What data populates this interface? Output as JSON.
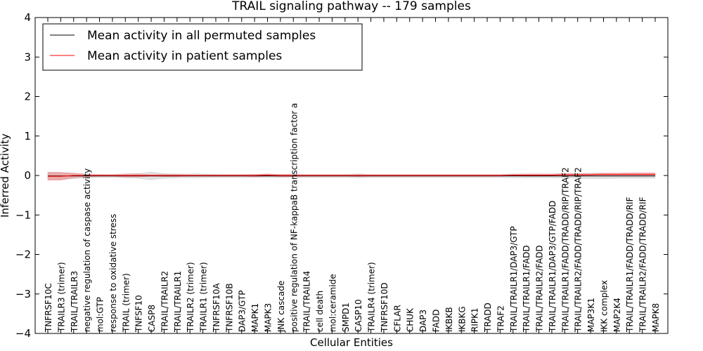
{
  "chart_data": {
    "type": "line",
    "title": "TRAIL signaling pathway -- 179 samples",
    "xlabel": "Cellular Entities",
    "ylabel": "Inferred Activity",
    "ylim": [
      -4,
      4
    ],
    "yticks": [
      "−4",
      "−3",
      "−2",
      "−1",
      "0",
      "1",
      "2",
      "3",
      "4"
    ],
    "grid": false,
    "legend_position": "top-left",
    "categories": [
      "TNFRSF10C",
      "TRAILR3 (trimer)",
      "TRAIL/TRAILR3",
      "negative regulation of caspase activity",
      "mol:GTP",
      "response to oxidative stress",
      "TRAIL (trimer)",
      "TNFSF10",
      "CASP8",
      "TRAIL/TRAILR2",
      "TRAIL/TRAILR1",
      "TRAILR2 (trimer)",
      "TRAILR1 (trimer)",
      "TNFRSF10A",
      "TNFRSF10B",
      "DAP3/GTP",
      "MAPK1",
      "MAPK3",
      "JNK cascade",
      "positive regulation of NF-kappaB transcription factor a",
      "TRAIL/TRAILR4",
      "cell death",
      "mol:ceramide",
      "SMPD1",
      "CASP10",
      "TRAILR4 (trimer)",
      "TNFRSF10D",
      "CFLAR",
      "CHUK",
      "DAP3",
      "FADD",
      "IKBKB",
      "IKBKG",
      "RIPK1",
      "TRADD",
      "TRAF2",
      "TRAIL/TRAILR1/DAP3/GTP",
      "TRAIL/TRAILR1/FADD",
      "TRAIL/TRAILR2/FADD",
      "TRAIL/TRAILR1/DAP3/GTP/FADD",
      "TRAIL/TRAILR1/FADD/TRADD/RIP/TRAF2",
      "TRAIL/TRAILR2/FADD/TRADD/RIP/TRAF2",
      "MAP3K1",
      "IKK complex",
      "MAP2K4",
      "TRAIL/TRAILR1/FADD/TRADD/RIF",
      "TRAIL/TRAILR2/FADD/TRADD/RIF",
      "MAPK8"
    ],
    "series": [
      {
        "name": "Mean activity in all permuted samples",
        "color": "#000000",
        "band_color": "#bbbbbb",
        "values": [
          -0.01,
          -0.01,
          -0.01,
          -0.01,
          -0.01,
          -0.01,
          -0.01,
          -0.01,
          -0.01,
          -0.01,
          -0.01,
          -0.01,
          -0.01,
          -0.01,
          -0.01,
          -0.01,
          -0.01,
          -0.01,
          -0.01,
          -0.01,
          -0.01,
          -0.01,
          -0.01,
          -0.01,
          -0.01,
          -0.01,
          -0.01,
          -0.01,
          -0.01,
          -0.01,
          -0.01,
          -0.01,
          -0.01,
          -0.01,
          -0.01,
          -0.01,
          -0.01,
          -0.01,
          -0.01,
          -0.01,
          -0.01,
          -0.01,
          -0.01,
          -0.01,
          -0.01,
          -0.01,
          -0.01,
          -0.01
        ],
        "spread": [
          0.1,
          0.09,
          0.07,
          0.05,
          0.04,
          0.04,
          0.05,
          0.06,
          0.1,
          0.06,
          0.05,
          0.05,
          0.05,
          0.04,
          0.04,
          0.04,
          0.04,
          0.04,
          0.04,
          0.04,
          0.04,
          0.04,
          0.04,
          0.04,
          0.05,
          0.04,
          0.04,
          0.04,
          0.04,
          0.04,
          0.04,
          0.04,
          0.04,
          0.04,
          0.04,
          0.04,
          0.05,
          0.05,
          0.05,
          0.05,
          0.06,
          0.06,
          0.07,
          0.07,
          0.06,
          0.06,
          0.06,
          0.06
        ]
      },
      {
        "name": "Mean activity in patient samples",
        "color": "#ff0000",
        "band_color": "#f08080",
        "values": [
          -0.02,
          -0.02,
          0.0,
          0.0,
          0.0,
          0.0,
          0.0,
          0.0,
          0.0,
          0.0,
          0.0,
          0.0,
          0.0,
          0.0,
          0.0,
          0.0,
          0.0,
          0.01,
          0.0,
          0.0,
          0.0,
          0.0,
          0.0,
          0.0,
          0.0,
          0.0,
          0.0,
          0.0,
          0.0,
          0.0,
          0.0,
          0.0,
          0.0,
          0.0,
          0.0,
          0.0,
          0.01,
          0.01,
          0.01,
          0.01,
          0.02,
          0.02,
          0.02,
          0.03,
          0.03,
          0.03,
          0.03,
          0.03
        ],
        "spread": [
          0.1,
          0.1,
          0.06,
          0.03,
          0.02,
          0.02,
          0.04,
          0.04,
          0.02,
          0.03,
          0.03,
          0.02,
          0.02,
          0.02,
          0.02,
          0.02,
          0.03,
          0.03,
          0.03,
          0.03,
          0.02,
          0.02,
          0.02,
          0.02,
          0.03,
          0.02,
          0.02,
          0.02,
          0.02,
          0.02,
          0.02,
          0.02,
          0.02,
          0.02,
          0.02,
          0.02,
          0.02,
          0.03,
          0.03,
          0.03,
          0.03,
          0.03,
          0.03,
          0.03,
          0.03,
          0.04,
          0.04,
          0.04
        ]
      }
    ]
  }
}
